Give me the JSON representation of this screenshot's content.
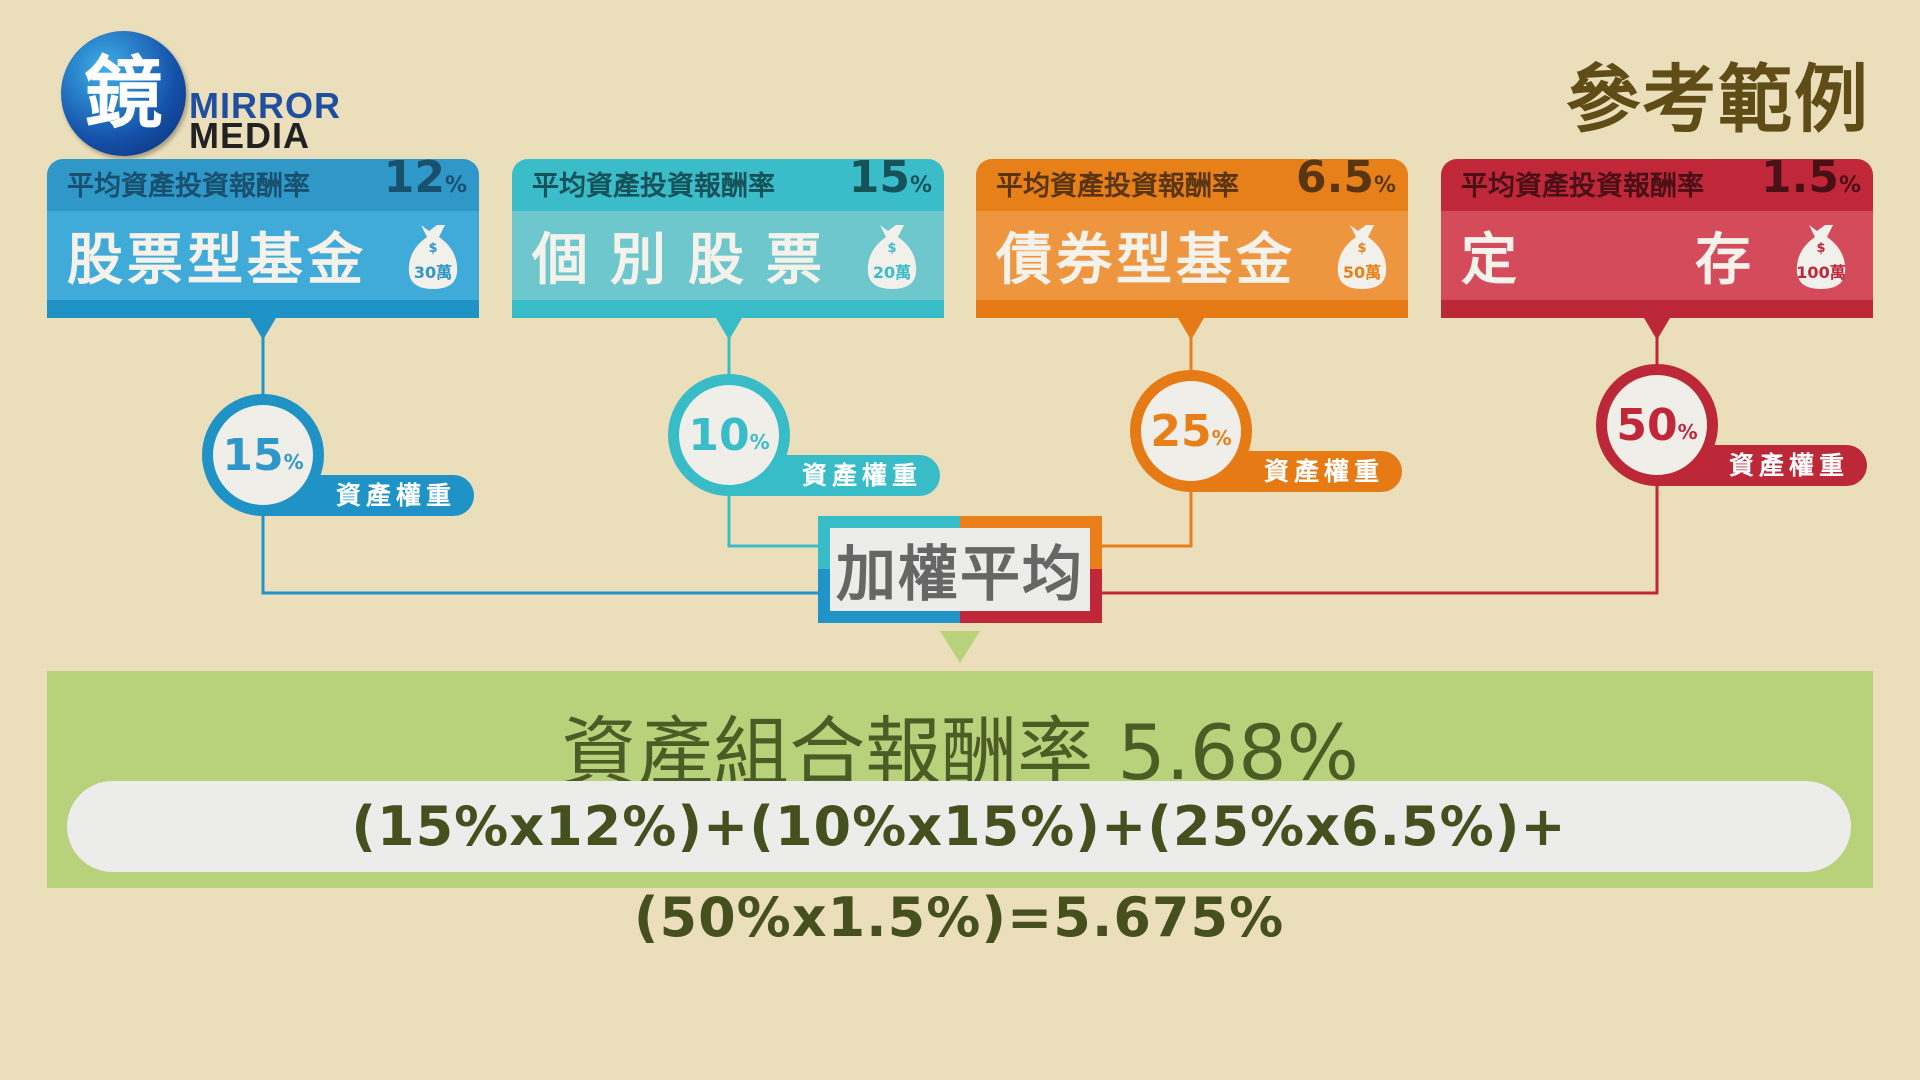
{
  "logo": {
    "glyph": "鏡",
    "line1": "MIRROR",
    "line2": "MEDIA"
  },
  "title": "參考範例",
  "colors": {
    "background": "#ebdfbb",
    "blue": "#2f98c9",
    "teal": "#3bbdc9",
    "orange": "#e8801a",
    "red": "#c0283a",
    "green": "#b8d27c"
  },
  "cards": [
    {
      "label": "平均資產投資報酬率",
      "rate": "12",
      "unit": "%",
      "name": [
        "股",
        "票",
        "型",
        "基",
        "金"
      ],
      "amount": "30萬",
      "currency": "$",
      "weight": "15",
      "weight_unit": "%",
      "weight_label": "資產權重",
      "icon": "money-bag-icon",
      "hd": "#2f98c9",
      "mn": "#40aad9",
      "ft": "#1f92c6",
      "dark": "#19506e"
    },
    {
      "label": "平均資產投資報酬率",
      "rate": "15",
      "unit": "%",
      "name": [
        "個",
        "別",
        "股",
        "票"
      ],
      "amount": "20萬",
      "currency": "$",
      "weight": "10",
      "weight_unit": "%",
      "weight_label": "資產權重",
      "icon": "money-bag-icon",
      "hd": "#3bbdc9",
      "mn": "#6dc7cd",
      "ft": "#38bcc8",
      "dark": "#16525a"
    },
    {
      "label": "平均資產投資報酬率",
      "rate": "6.5",
      "unit": "%",
      "name": [
        "債",
        "券",
        "型",
        "基",
        "金"
      ],
      "amount": "50萬",
      "currency": "$",
      "weight": "25",
      "weight_unit": "%",
      "weight_label": "資產權重",
      "icon": "money-bag-icon",
      "hd": "#e8801a",
      "mn": "#ee9540",
      "ft": "#e67a14",
      "dark": "#5a3512"
    },
    {
      "label": "平均資產投資報酬率",
      "rate": "1.5",
      "unit": "%",
      "name": [
        "定",
        "存"
      ],
      "amount": "100萬",
      "currency": "$",
      "weight": "50",
      "weight_unit": "%",
      "weight_label": "資產權重",
      "icon": "money-bag-icon",
      "hd": "#c0283a",
      "mn": "#d44c5c",
      "ft": "#bd2838",
      "dark": "#4a1016"
    }
  ],
  "weighted_label": "加權平均",
  "result": {
    "title": "資產組合報酬率 5.68%",
    "formula": "(15%x12%)+(10%x15%)+(25%x6.5%)+(50%x1.5%)=5.675%"
  }
}
